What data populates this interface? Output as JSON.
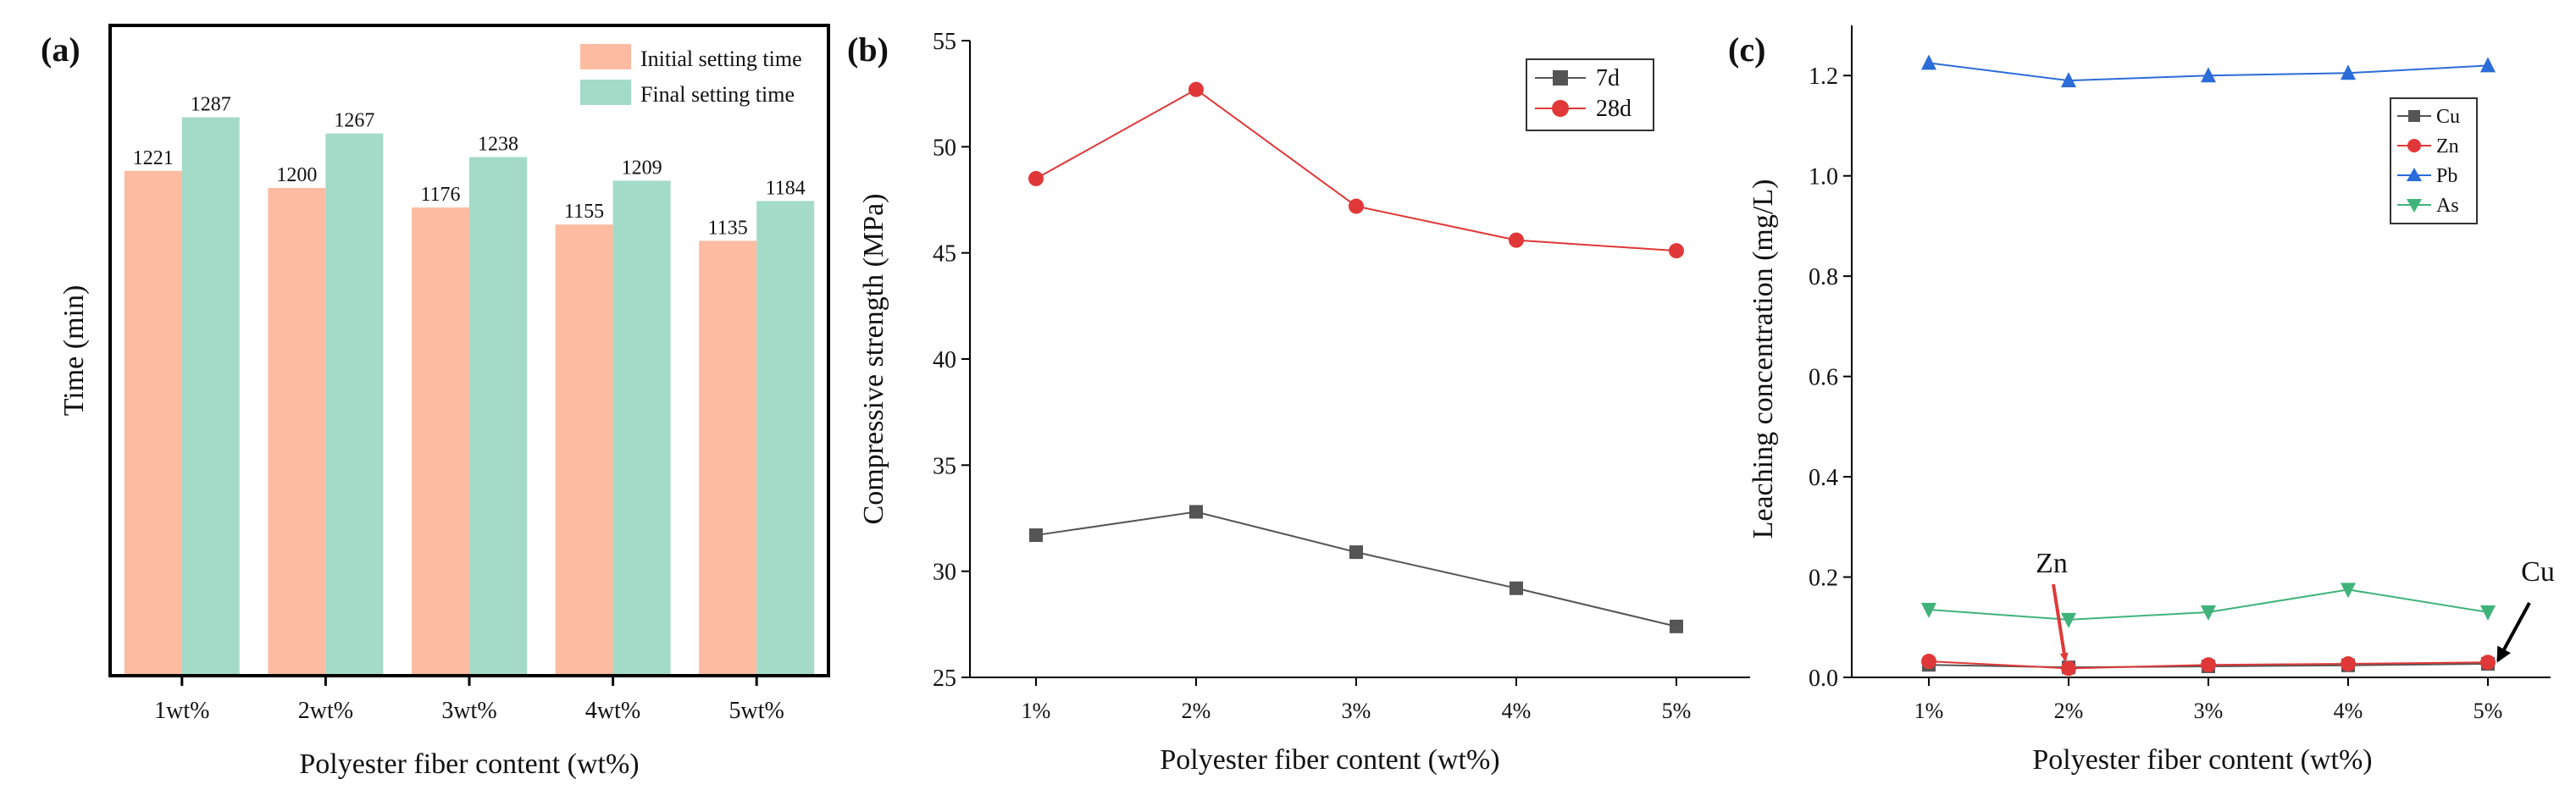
{
  "chart_data": [
    {
      "panel_label": "(a)",
      "type": "bar",
      "xlabel": "Polyester fiber content (wt%)",
      "ylabel": "Time (min)",
      "categories": [
        "1wt%",
        "2wt%",
        "3wt%",
        "4wt%",
        "5wt%"
      ],
      "ylim": [
        600,
        1400
      ],
      "series": [
        {
          "name": "Initial setting time",
          "color": "#fdbba1",
          "values": [
            1221,
            1200,
            1176,
            1155,
            1135
          ]
        },
        {
          "name": "Final setting time",
          "color": "#a3dbc8",
          "values": [
            1287,
            1267,
            1238,
            1209,
            1184
          ]
        }
      ]
    },
    {
      "panel_label": "(b)",
      "type": "line",
      "xlabel": "Polyester fiber content (wt%)",
      "ylabel": "Compressive strength (MPa)",
      "categories": [
        "1%",
        "2%",
        "3%",
        "4%",
        "5%"
      ],
      "ylim": [
        25,
        55
      ],
      "yticks": [
        "25",
        "30",
        "35",
        "40",
        "45",
        "50",
        "55"
      ],
      "series": [
        {
          "name": "7d",
          "color": "#555555",
          "marker": "square",
          "values": [
            31.7,
            32.8,
            30.9,
            29.2,
            27.4
          ]
        },
        {
          "name": "28d",
          "color": "#e03838",
          "marker": "circle",
          "values": [
            48.5,
            52.7,
            47.2,
            45.6,
            45.1
          ]
        }
      ]
    },
    {
      "panel_label": "(c)",
      "type": "line",
      "xlabel": "Polyester fiber content (wt%)",
      "ylabel": "Leaching concentration (mg/L)",
      "categories": [
        "1%",
        "2%",
        "3%",
        "4%",
        "5%"
      ],
      "ylim": [
        0,
        1.3
      ],
      "yticks": [
        "0.0",
        "0.2",
        "0.4",
        "0.6",
        "0.8",
        "1.0",
        "1.2"
      ],
      "series": [
        {
          "name": "Cu",
          "color": "#555555",
          "marker": "square",
          "values": [
            0.025,
            0.02,
            0.022,
            0.024,
            0.027
          ]
        },
        {
          "name": "Zn",
          "color": "#e03838",
          "marker": "circle",
          "values": [
            0.032,
            0.018,
            0.025,
            0.027,
            0.03
          ]
        },
        {
          "name": "Pb",
          "color": "#2b6cd9",
          "marker": "triangle-up",
          "values": [
            1.225,
            1.19,
            1.2,
            1.205,
            1.22
          ]
        },
        {
          "name": "As",
          "color": "#3fb37a",
          "marker": "triangle-down",
          "values": [
            0.135,
            0.115,
            0.13,
            0.175,
            0.13
          ]
        }
      ],
      "annotations": [
        {
          "text": "Zn",
          "target_series": "Zn",
          "target_index": 1,
          "arrow_color": "#e03838"
        },
        {
          "text": "Cu",
          "target_series": "Cu",
          "target_index": 4,
          "arrow_color": "#000000"
        }
      ]
    }
  ]
}
